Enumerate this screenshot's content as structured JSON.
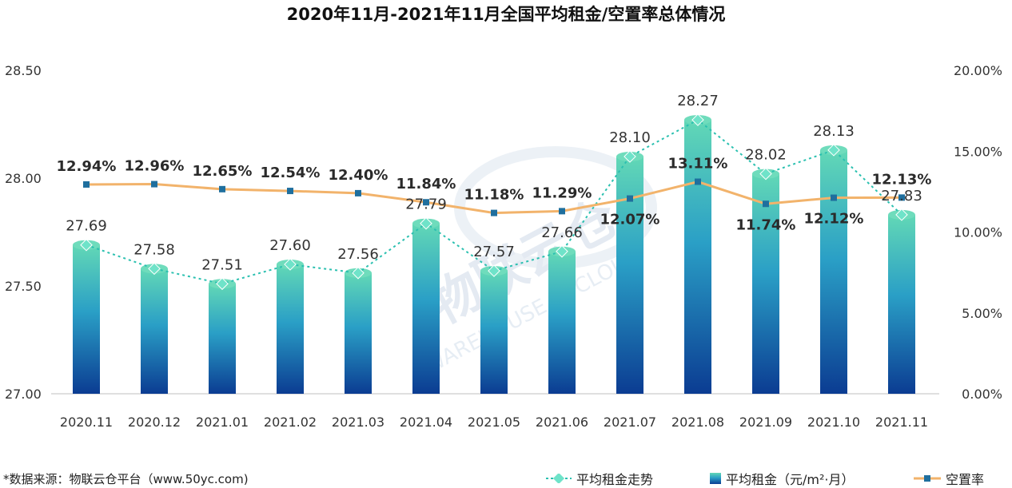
{
  "chart_data": {
    "type": "bar+line",
    "title": "2020年11月-2021年11月全国平均租金/空置率总体情况",
    "categories": [
      "2020.11",
      "2020.12",
      "2021.01",
      "2021.02",
      "2021.03",
      "2021.04",
      "2021.05",
      "2021.06",
      "2021.07",
      "2021.08",
      "2021.09",
      "2021.10",
      "2021.11"
    ],
    "series": [
      {
        "name": "平均租金（元/m²·月）",
        "kind": "bar",
        "axis": "left",
        "values": [
          27.69,
          27.58,
          27.51,
          27.6,
          27.56,
          27.79,
          27.57,
          27.66,
          28.1,
          28.27,
          28.02,
          28.13,
          27.83
        ],
        "labels": [
          "27.69",
          "27.58",
          "27.51",
          "27.60",
          "27.56",
          "27.79",
          "27.57",
          "27.66",
          "28.10",
          "28.27",
          "28.02",
          "28.13",
          "27.83"
        ]
      },
      {
        "name": "平均租金走势",
        "kind": "dotted-line",
        "axis": "left",
        "values": [
          27.69,
          27.58,
          27.51,
          27.6,
          27.56,
          27.79,
          27.57,
          27.66,
          28.1,
          28.27,
          28.02,
          28.13,
          27.83
        ]
      },
      {
        "name": "空置率",
        "kind": "line",
        "axis": "right",
        "values": [
          12.94,
          12.96,
          12.65,
          12.54,
          12.4,
          11.84,
          11.18,
          11.29,
          12.07,
          13.11,
          11.74,
          12.12,
          12.13
        ],
        "labels": [
          "12.94%",
          "12.96%",
          "12.65%",
          "12.54%",
          "12.40%",
          "11.84%",
          "11.18%",
          "11.29%",
          "12.07%",
          "13.11%",
          "11.74%",
          "12.12%",
          "12.13%"
        ]
      }
    ],
    "y_left": {
      "min": 27.0,
      "max": 28.5,
      "ticks": [
        "27.00",
        "27.50",
        "28.00",
        "28.50"
      ]
    },
    "y_right": {
      "min": 0,
      "max": 20,
      "ticks": [
        "0.00%",
        "5.00%",
        "10.00%",
        "15.00%",
        "20.00%"
      ]
    },
    "colors": {
      "bar_top": "#5fd4b4",
      "bar_bottom": "#0a3a8e",
      "trend": "#2bc0b0",
      "trend_marker": "#6fe3c9",
      "vacancy": "#f2b36b",
      "vacancy_marker": "#1f6f9e"
    },
    "legend_position": "bottom-right",
    "grid": false
  },
  "legend": {
    "trend": "平均租金走势",
    "rent": "平均租金（元/m²·月）",
    "vacancy": "空置率"
  },
  "source": "*数据来源：物联云仓平台（www.50yc.com)",
  "watermark": {
    "cn": "物联云仓",
    "en": "WAREHOUSE IN CLOUD"
  }
}
